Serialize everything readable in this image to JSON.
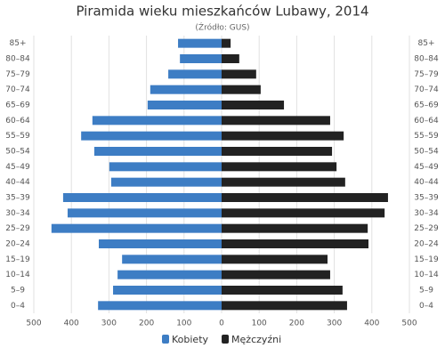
{
  "chart_data": {
    "type": "pyramid",
    "title": "Piramida wieku mieszkańców Lubawy, 2014",
    "subtitle": "(Źródło: GUS)",
    "categories": [
      "85+",
      "80–84",
      "75–79",
      "70–74",
      "65–69",
      "60–64",
      "55–59",
      "50–54",
      "45–49",
      "40–44",
      "35–39",
      "30–34",
      "25–29",
      "20–24",
      "15–19",
      "10–14",
      "5–9",
      "0–4"
    ],
    "series": [
      {
        "name": "Kobiety",
        "color": "#3d7dc4",
        "values": [
          -116,
          -111,
          -142,
          -190,
          -197,
          -344,
          -374,
          -339,
          -299,
          -294,
          -422,
          -410,
          -453,
          -327,
          -265,
          -277,
          -289,
          -329
        ]
      },
      {
        "name": "Mężczyźni",
        "color": "#222222",
        "values": [
          24,
          47,
          92,
          104,
          166,
          289,
          325,
          294,
          306,
          329,
          443,
          434,
          389,
          391,
          282,
          289,
          322,
          334
        ]
      }
    ],
    "xlim": [
      -500,
      500
    ],
    "xticks": [
      {
        "value": -500,
        "label": "500"
      },
      {
        "value": -400,
        "label": "400"
      },
      {
        "value": -300,
        "label": "300"
      },
      {
        "value": -200,
        "label": "200"
      },
      {
        "value": -100,
        "label": "100"
      },
      0,
      100,
      200,
      300,
      400,
      500
    ],
    "grid": true,
    "legend": "bottom"
  }
}
